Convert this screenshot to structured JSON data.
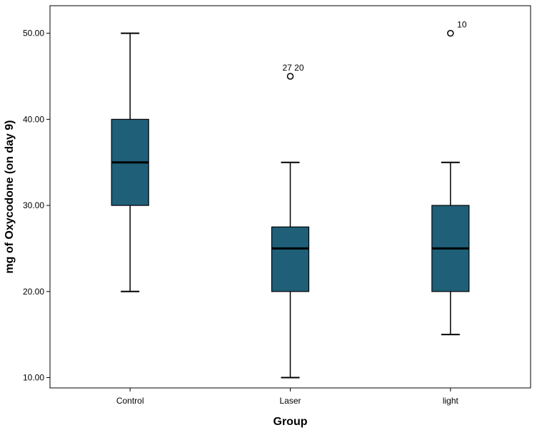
{
  "chart_data": {
    "type": "box",
    "xlabel": "Group",
    "ylabel": "mg of Oxycodone (on day 9)",
    "ylim": [
      8.8,
      53.2
    ],
    "yticks": [
      10,
      20,
      30,
      40,
      50
    ],
    "ytick_labels": [
      "10.00",
      "20.00",
      "30.00",
      "40.00",
      "50.00"
    ],
    "grid": false,
    "box_color": "#1f5f78",
    "categories": [
      "Control",
      "Laser",
      "light"
    ],
    "boxes": [
      {
        "category": "Control",
        "whisker_low": 20,
        "q1": 30,
        "median": 35,
        "q3": 40,
        "whisker_high": 50,
        "outliers": []
      },
      {
        "category": "Laser",
        "whisker_low": 10,
        "q1": 20,
        "median": 25,
        "q3": 27.5,
        "whisker_high": 35,
        "outliers": [
          {
            "value": 45,
            "label": "27 20"
          }
        ]
      },
      {
        "category": "light",
        "whisker_low": 15,
        "q1": 20,
        "median": 25,
        "q3": 30,
        "whisker_high": 35,
        "outliers": [
          {
            "value": 50,
            "label": "10"
          }
        ]
      }
    ]
  }
}
